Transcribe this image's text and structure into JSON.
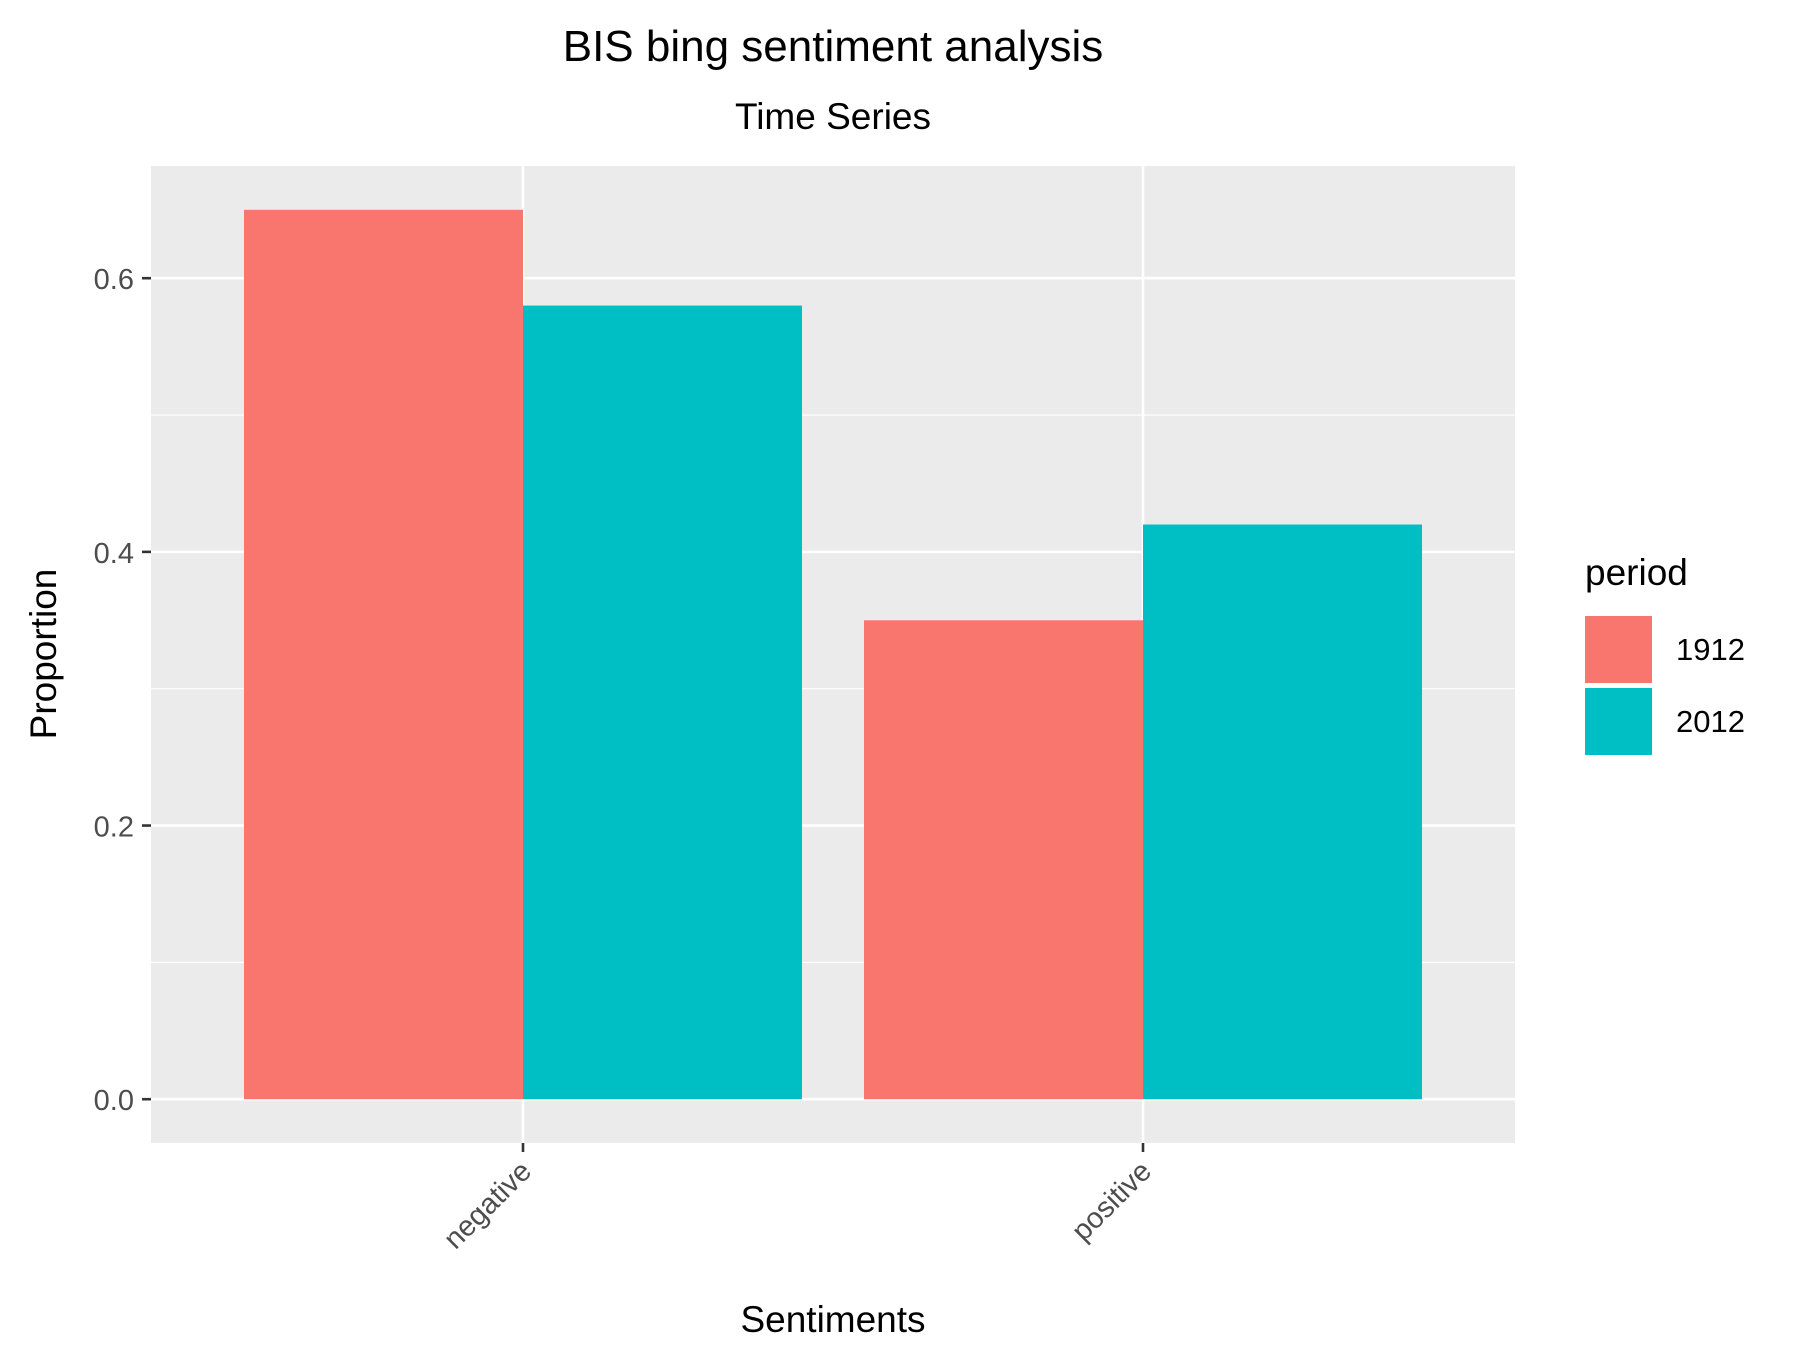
{
  "chart_data": {
    "type": "bar",
    "title": "BIS bing sentiment analysis",
    "subtitle": "Time Series",
    "xlabel": "Sentiments",
    "ylabel": "Proportion",
    "categories": [
      "negative",
      "positive"
    ],
    "series": [
      {
        "name": "1912",
        "values": [
          0.65,
          0.35
        ],
        "color": "#F8766D"
      },
      {
        "name": "2012",
        "values": [
          0.58,
          0.42
        ],
        "color": "#00BFC4"
      }
    ],
    "ylim": [
      -0.032,
      0.682
    ],
    "yticks": [
      0.0,
      0.2,
      0.4,
      0.6
    ],
    "ytick_labels": [
      "0.0",
      "0.2",
      "0.4",
      "0.6"
    ],
    "grid": true,
    "legend": {
      "title": "period",
      "position": "right",
      "entries": [
        "1912",
        "2012"
      ]
    },
    "colors": {
      "panel_background": "#EBEBEB",
      "grid": "#FFFFFF",
      "tick": "#333333"
    }
  }
}
